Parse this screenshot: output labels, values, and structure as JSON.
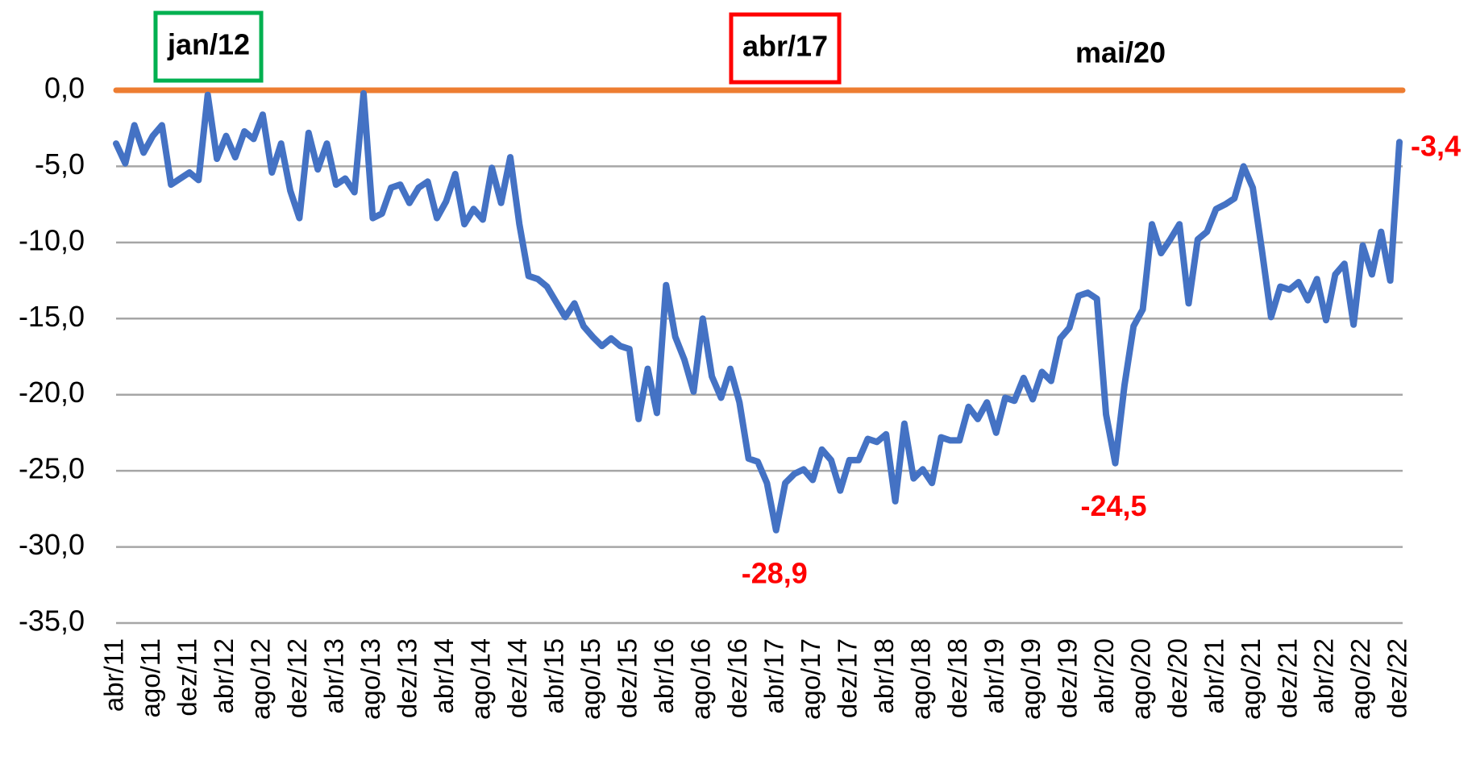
{
  "chart_data": {
    "type": "line",
    "categories": [
      "abr/11",
      null,
      null,
      null,
      "ago/11",
      null,
      null,
      null,
      "dez/11",
      null,
      null,
      null,
      "abr/12",
      null,
      null,
      null,
      "ago/12",
      null,
      null,
      null,
      "dez/12",
      null,
      null,
      null,
      "abr/13",
      null,
      null,
      null,
      "ago/13",
      null,
      null,
      null,
      "dez/13",
      null,
      null,
      null,
      "abr/14",
      null,
      null,
      null,
      "ago/14",
      null,
      null,
      null,
      "dez/14",
      null,
      null,
      null,
      "abr/15",
      null,
      null,
      null,
      "ago/15",
      null,
      null,
      null,
      "dez/15",
      null,
      null,
      null,
      "abr/16",
      null,
      null,
      null,
      "ago/16",
      null,
      null,
      null,
      "dez/16",
      null,
      null,
      null,
      "abr/17",
      null,
      null,
      null,
      "ago/17",
      null,
      null,
      null,
      "dez/17",
      null,
      null,
      null,
      "abr/18",
      null,
      null,
      null,
      "ago/18",
      null,
      null,
      null,
      "dez/18",
      null,
      null,
      null,
      "abr/19",
      null,
      null,
      null,
      "ago/19",
      null,
      null,
      null,
      "dez/19",
      null,
      null,
      null,
      "abr/20",
      null,
      null,
      null,
      "ago/20",
      null,
      null,
      null,
      "dez/20",
      null,
      null,
      null,
      "abr/21",
      null,
      null,
      null,
      "ago/21",
      null,
      null,
      null,
      "dez/21",
      null,
      null,
      null,
      "abr/22",
      null,
      null,
      null,
      "ago/22",
      null,
      null,
      null,
      "dez/22"
    ],
    "values": [
      -3.5,
      -4.8,
      -2.3,
      -4.1,
      -3.0,
      -2.3,
      -6.2,
      -5.8,
      -5.4,
      -5.9,
      -0.3,
      -4.5,
      -3.0,
      -4.4,
      -2.7,
      -3.2,
      -1.6,
      -5.4,
      -3.5,
      -6.6,
      -8.4,
      -2.8,
      -5.2,
      -3.5,
      -6.2,
      -5.8,
      -6.7,
      -0.2,
      -8.4,
      -8.1,
      -6.4,
      -6.2,
      -7.4,
      -6.4,
      -6.0,
      -8.4,
      -7.3,
      -5.5,
      -8.8,
      -7.8,
      -8.5,
      -5.1,
      -7.4,
      -4.4,
      -8.8,
      -12.2,
      -12.4,
      -12.9,
      -13.9,
      -14.9,
      -14.0,
      -15.5,
      -16.2,
      -16.8,
      -16.3,
      -16.8,
      -17.0,
      -21.6,
      -18.3,
      -21.2,
      -12.8,
      -16.2,
      -17.7,
      -19.8,
      -15.0,
      -18.8,
      -20.2,
      -18.3,
      -20.5,
      -24.2,
      -24.4,
      -25.8,
      -28.9,
      -25.8,
      -25.2,
      -24.9,
      -25.6,
      -23.6,
      -24.3,
      -26.3,
      -24.3,
      -24.3,
      -22.9,
      -23.1,
      -22.6,
      -27.0,
      -21.9,
      -25.5,
      -24.9,
      -25.8,
      -22.8,
      -23.0,
      -23.0,
      -20.8,
      -21.6,
      -20.5,
      -22.5,
      -20.2,
      -20.4,
      -18.9,
      -20.3,
      -18.5,
      -19.1,
      -16.3,
      -15.6,
      -13.5,
      -13.3,
      -13.7,
      -21.3,
      -24.5,
      -19.4,
      -15.5,
      -14.4,
      -8.8,
      -10.7,
      -9.8,
      -8.8,
      -14.0,
      -9.8,
      -9.3,
      -7.8,
      -7.5,
      -7.1,
      -5.0,
      -6.4,
      -10.5,
      -14.9,
      -12.9,
      -13.1,
      -12.6,
      -13.8,
      -12.4,
      -15.1,
      -12.1,
      -11.4,
      -15.4,
      -10.2,
      -12.1,
      -9.3,
      -12.5,
      -3.4
    ],
    "value_labels": [
      null,
      null,
      null,
      null,
      null,
      null,
      null,
      null,
      null,
      null,
      null,
      null,
      null,
      null,
      null,
      null,
      null,
      null,
      null,
      null,
      null,
      null,
      null,
      null,
      null,
      null,
      null,
      null,
      null,
      null,
      null,
      null,
      null,
      null,
      null,
      null,
      null,
      null,
      null,
      null,
      null,
      null,
      null,
      null,
      null,
      null,
      null,
      null,
      null,
      null,
      null,
      null,
      null,
      null,
      null,
      null,
      null,
      null,
      null,
      null,
      null,
      null,
      null,
      null,
      null,
      null,
      null,
      null,
      null,
      null,
      null,
      null,
      "-28,9",
      null,
      null,
      null,
      null,
      null,
      null,
      null,
      null,
      null,
      null,
      null,
      null,
      null,
      null,
      null,
      null,
      null,
      null,
      null,
      null,
      null,
      null,
      null,
      null,
      null,
      null,
      null,
      null,
      null,
      null,
      null,
      null,
      null,
      null,
      null,
      null,
      "-24,5",
      null,
      null,
      null,
      null,
      null,
      null,
      null,
      null,
      null,
      null,
      null,
      null,
      null,
      null,
      null,
      null,
      null,
      null,
      null,
      null,
      null,
      null,
      null,
      null,
      null,
      null,
      null,
      null,
      null,
      null,
      "-3,4"
    ],
    "color": "#4472c4",
    "label_color": "#ff0000",
    "reference_line": {
      "value": 0,
      "color": "#ed7d31"
    },
    "annotations": [
      {
        "text": "jan/12",
        "border": "#00b050"
      },
      {
        "text": "abr/17",
        "border": "#ff0000"
      },
      {
        "text": "mai/20"
      }
    ],
    "ylim": [
      -35,
      0
    ],
    "yticks": [
      {
        "value": 0,
        "label": "0,0"
      },
      {
        "value": -5,
        "label": "-5,0"
      },
      {
        "value": -10,
        "label": "-10,0"
      },
      {
        "value": -15,
        "label": "-15,0"
      },
      {
        "value": -20,
        "label": "-20,0"
      },
      {
        "value": -25,
        "label": "-25,0"
      },
      {
        "value": -30,
        "label": "-30,0"
      },
      {
        "value": -35,
        "label": "-35,0"
      }
    ],
    "grid": true
  }
}
